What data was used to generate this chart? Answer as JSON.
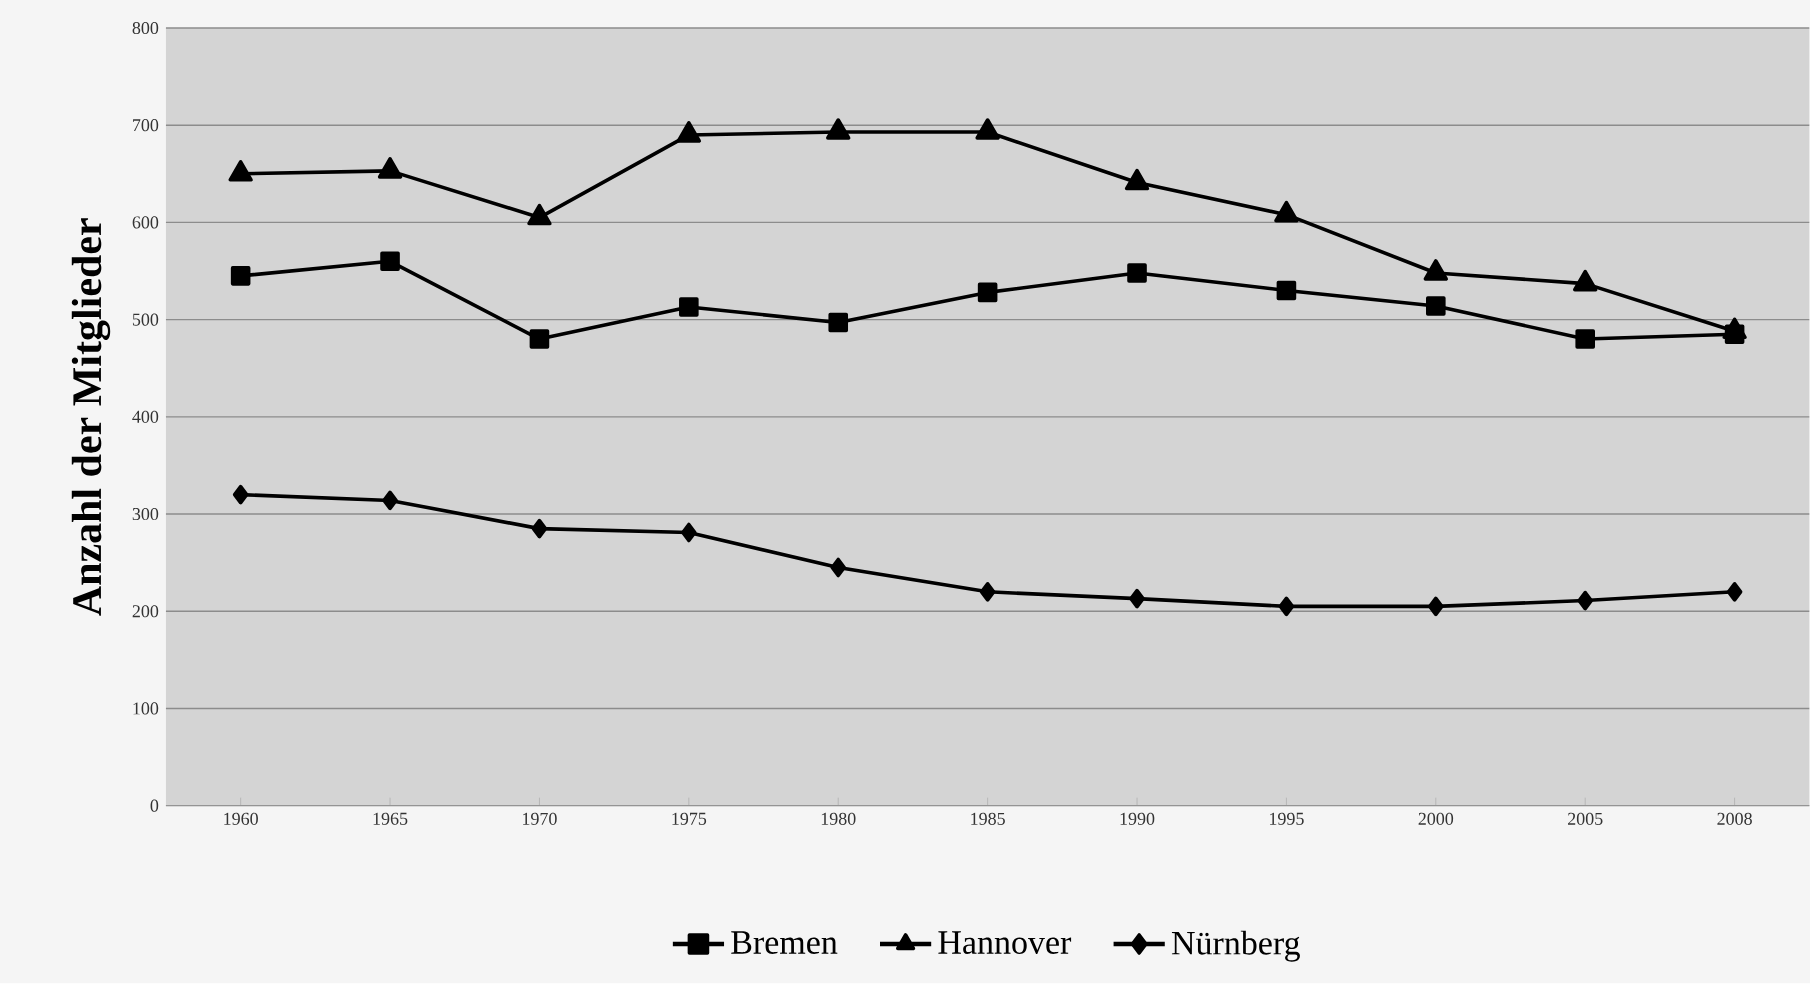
{
  "chart_data": {
    "type": "line",
    "ylabel": "Anzahl der Mitglieder",
    "categories": [
      "1960",
      "1965",
      "1970",
      "1975",
      "1980",
      "1985",
      "1990",
      "1995",
      "2000",
      "2005",
      "2008"
    ],
    "series": [
      {
        "name": "Bremen",
        "color": "#000000",
        "marker": "square",
        "values": [
          545,
          560,
          480,
          513,
          497,
          528,
          548,
          530,
          514,
          480,
          485
        ]
      },
      {
        "name": "Hannover",
        "color": "#000000",
        "marker": "triangle",
        "values": [
          650,
          653,
          605,
          690,
          693,
          693,
          641,
          608,
          548,
          537,
          488
        ]
      },
      {
        "name": "Nürnberg",
        "color": "#000000",
        "marker": "diamond",
        "values": [
          320,
          314,
          285,
          281,
          245,
          220,
          213,
          205,
          205,
          211,
          220
        ]
      }
    ],
    "ylim": [
      0,
      800
    ],
    "yticks": [
      0,
      100,
      200,
      300,
      400,
      500,
      600,
      700,
      800
    ],
    "grid": "y",
    "legend": "bottom",
    "line_style": "solid"
  }
}
